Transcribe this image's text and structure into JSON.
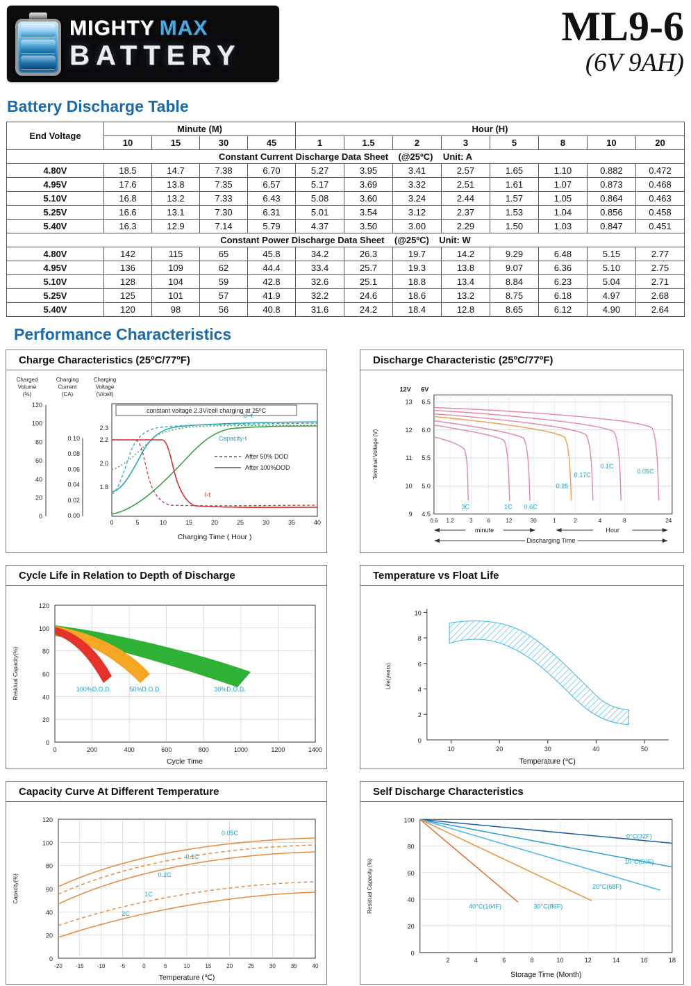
{
  "page": {
    "brand": {
      "line1_a": "MIGHTY",
      "line1_b": "MAX",
      "line2": "BATTERY"
    },
    "model": "ML9-6",
    "spec": "(6V 9AH)",
    "section1_title": "Battery Discharge Table",
    "section2_title": "Performance Characteristics"
  },
  "discharge_table": {
    "corner": "End Voltage",
    "minute_header": "Minute (M)",
    "hour_header": "Hour (H)",
    "minute_cols": [
      "10",
      "15",
      "30",
      "45"
    ],
    "hour_cols": [
      "1",
      "1.5",
      "2",
      "3",
      "5",
      "8",
      "10",
      "20"
    ],
    "current_label": "Constant Current Discharge Data Sheet    (@25ºC)    Unit: A",
    "power_label": "Constant Power Discharge Data Sheet    (@25ºC)    Unit: W",
    "current_rows": [
      {
        "voltage": "4.80V",
        "values": [
          "18.5",
          "14.7",
          "7.38",
          "6.70",
          "5.27",
          "3.95",
          "3.41",
          "2.57",
          "1.65",
          "1.10",
          "0.882",
          "0.472"
        ]
      },
      {
        "voltage": "4.95V",
        "values": [
          "17.6",
          "13.8",
          "7.35",
          "6.57",
          "5.17",
          "3.69",
          "3.32",
          "2.51",
          "1.61",
          "1.07",
          "0.873",
          "0.468"
        ]
      },
      {
        "voltage": "5.10V",
        "values": [
          "16.8",
          "13.2",
          "7.33",
          "6.43",
          "5.08",
          "3.60",
          "3.24",
          "2.44",
          "1.57",
          "1.05",
          "0.864",
          "0.463"
        ]
      },
      {
        "voltage": "5.25V",
        "values": [
          "16.6",
          "13.1",
          "7.30",
          "6.31",
          "5.01",
          "3.54",
          "3.12",
          "2.37",
          "1.53",
          "1.04",
          "0.856",
          "0.458"
        ]
      },
      {
        "voltage": "5.40V",
        "values": [
          "16.3",
          "12.9",
          "7.14",
          "5.79",
          "4.37",
          "3.50",
          "3.00",
          "2.29",
          "1.50",
          "1.03",
          "0.847",
          "0.451"
        ]
      }
    ],
    "power_rows": [
      {
        "voltage": "4.80V",
        "values": [
          "142",
          "115",
          "65",
          "45.8",
          "34.2",
          "26.3",
          "19.7",
          "14.2",
          "9.29",
          "6.48",
          "5.15",
          "2.77"
        ]
      },
      {
        "voltage": "4.95V",
        "values": [
          "136",
          "109",
          "62",
          "44.4",
          "33.4",
          "25.7",
          "19.3",
          "13.8",
          "9.07",
          "6.36",
          "5.10",
          "2.75"
        ]
      },
      {
        "voltage": "5.10V",
        "values": [
          "128",
          "104",
          "59",
          "42.8",
          "32.6",
          "25.1",
          "18.8",
          "13.4",
          "8.84",
          "6.23",
          "5.04",
          "2.71"
        ]
      },
      {
        "voltage": "5.25V",
        "values": [
          "125",
          "101",
          "57",
          "41.9",
          "32.2",
          "24.6",
          "18.6",
          "13.2",
          "8.75",
          "6.18",
          "4.97",
          "2.68"
        ]
      },
      {
        "voltage": "5.40V",
        "values": [
          "120",
          "98",
          "56",
          "40.8",
          "31.6",
          "24.2",
          "18.4",
          "12.8",
          "8.65",
          "6.12",
          "4.90",
          "2.64"
        ]
      }
    ]
  },
  "chart_data": [
    {
      "id": "charge-characteristics",
      "type": "line",
      "title": "Charge Characteristics (25ºC/77ºF)",
      "axis_headers": [
        [
          "Charged",
          "Volume",
          "(%)"
        ],
        [
          "Charging",
          "Current",
          "(CA)"
        ],
        [
          "Charging",
          "Voltage",
          "(V/cell)"
        ]
      ],
      "annotation": "constant voltage 2.3V/cell charging at 25ºC",
      "volume_ticks": [
        "120",
        "100",
        "80",
        "60",
        "40",
        "20",
        "0"
      ],
      "current_ticks": [
        "0.10",
        "0.08",
        "0.06",
        "0.04",
        "0.02",
        "0.00"
      ],
      "voltage_ticks": [
        "2.3",
        "2.2",
        "2.0",
        "1.8"
      ],
      "x_ticks": [
        "0",
        "5",
        "10",
        "15",
        "20",
        "25",
        "30",
        "35",
        "40"
      ],
      "xlabel": "Charging Time ( Hour )",
      "series_labels": {
        "voltage": "U–t",
        "capacity": "Capacity-t",
        "current": "I-t"
      },
      "legend": [
        {
          "line": "dashed",
          "label": "After 50% DOD"
        },
        {
          "line": "solid",
          "label": "After 100%DOD"
        }
      ]
    },
    {
      "id": "discharge-characteristic",
      "type": "line",
      "title": "Discharge Characteristic (25ºC/77ºF)",
      "ylabel": "Terminal Voltage (V)",
      "scale_12v": "12V",
      "scale_6v": "6V",
      "ticks_12v": [
        "13",
        "12",
        "11",
        "10",
        "9"
      ],
      "ticks_6v": [
        "6.5",
        "6.0",
        "5.5",
        "5.0",
        "4.5"
      ],
      "minute_ticks": [
        "0.6",
        "1.2",
        "3",
        "6",
        "12",
        "30"
      ],
      "hour_ticks": [
        "1",
        "2",
        "4",
        "8",
        "24"
      ],
      "minute_label": "minute",
      "hour_label": "Hour",
      "xlabel": "Discharging Time",
      "rate_labels": [
        "3C",
        "1C",
        "0.6C",
        "0.25",
        "0.17C",
        "0.1C",
        "0.05C"
      ]
    },
    {
      "id": "cycle-life",
      "type": "area",
      "title": "Cycle Life in Relation to Depth of Discharge",
      "ylabel": "Residual Capacity(%)",
      "y_ticks": [
        "120",
        "100",
        "80",
        "60",
        "40",
        "20",
        "0"
      ],
      "x_ticks": [
        "0",
        "200",
        "400",
        "600",
        "800",
        "1000",
        "1200",
        "1400"
      ],
      "xlabel": "Cycle Time",
      "bands": [
        {
          "label": "100%D.O.D.",
          "color": "#e63329",
          "approx_cycles_to_60pct": 250
        },
        {
          "label": "50%D.O.D",
          "color": "#f5a623",
          "approx_cycles_to_60pct": 500
        },
        {
          "label": "30%D.O.D.",
          "color": "#2eb135",
          "approx_cycles_to_60pct": 1050
        }
      ]
    },
    {
      "id": "temperature-vs-float-life",
      "type": "area",
      "title": "Temperature vs Float Life",
      "ylabel": "Life(years)",
      "y_ticks": [
        "10",
        "8",
        "6",
        "4",
        "2",
        "0"
      ],
      "x_ticks": [
        "10",
        "20",
        "30",
        "40",
        "50"
      ],
      "xlabel": "Temperature (℃)",
      "band": {
        "style": "hatched",
        "color": "#3db5e6",
        "temp_points_c": [
          10,
          20,
          30,
          40,
          46
        ],
        "life_upper_years": [
          9.2,
          9.0,
          5.5,
          2.9,
          2.4
        ],
        "life_lower_years": [
          7.6,
          7.2,
          3.2,
          1.6,
          1.2
        ]
      }
    },
    {
      "id": "capacity-vs-temperature",
      "type": "line",
      "title": "Capacity Curve At Different Temperature",
      "ylabel": "Capacity(%)",
      "y_ticks": [
        "120",
        "100",
        "80",
        "60",
        "40",
        "20",
        "0"
      ],
      "x_ticks": [
        "-20",
        "-15",
        "-10",
        "-5",
        "0",
        "5",
        "10",
        "15",
        "20",
        "25",
        "30",
        "35",
        "40"
      ],
      "xlabel": "Temperature (℃)",
      "series": [
        {
          "label": "0.05C",
          "style": "solid",
          "approx_pct_at_minus20": 62,
          "approx_pct_at_40": 104
        },
        {
          "label": "0.1C",
          "style": "dashed",
          "approx_pct_at_minus20": 55,
          "approx_pct_at_40": 98
        },
        {
          "label": "0.2C",
          "style": "solid",
          "approx_pct_at_minus20": 47,
          "approx_pct_at_40": 92
        },
        {
          "label": "1C",
          "style": "dashed",
          "approx_pct_at_minus20": 28,
          "approx_pct_at_40": 66
        },
        {
          "label": "2C",
          "style": "solid",
          "approx_pct_at_minus20": 18,
          "approx_pct_at_40": 57
        }
      ]
    },
    {
      "id": "self-discharge",
      "type": "line",
      "title": "Self Discharge Characteristics",
      "ylabel": "Residual Capacity (%)",
      "y_ticks": [
        "100",
        "80",
        "60",
        "40",
        "20",
        "0"
      ],
      "x_ticks": [
        "2",
        "4",
        "6",
        "8",
        "10",
        "12",
        "14",
        "16",
        "18"
      ],
      "xlabel": "Storage Time (Month)",
      "series": [
        {
          "label": "0°C(32F)",
          "approx_end_month": 18,
          "approx_end_pct": 82
        },
        {
          "label": "10°C(50F)",
          "approx_end_month": 18,
          "approx_end_pct": 64
        },
        {
          "label": "20°C(68F)",
          "approx_end_month": 17,
          "approx_end_pct": 46
        },
        {
          "label": "30°C(86F)",
          "approx_end_month": 12,
          "approx_end_pct": 39
        },
        {
          "label": "40°C(104F)",
          "approx_end_month": 7,
          "approx_end_pct": 38
        }
      ]
    }
  ]
}
